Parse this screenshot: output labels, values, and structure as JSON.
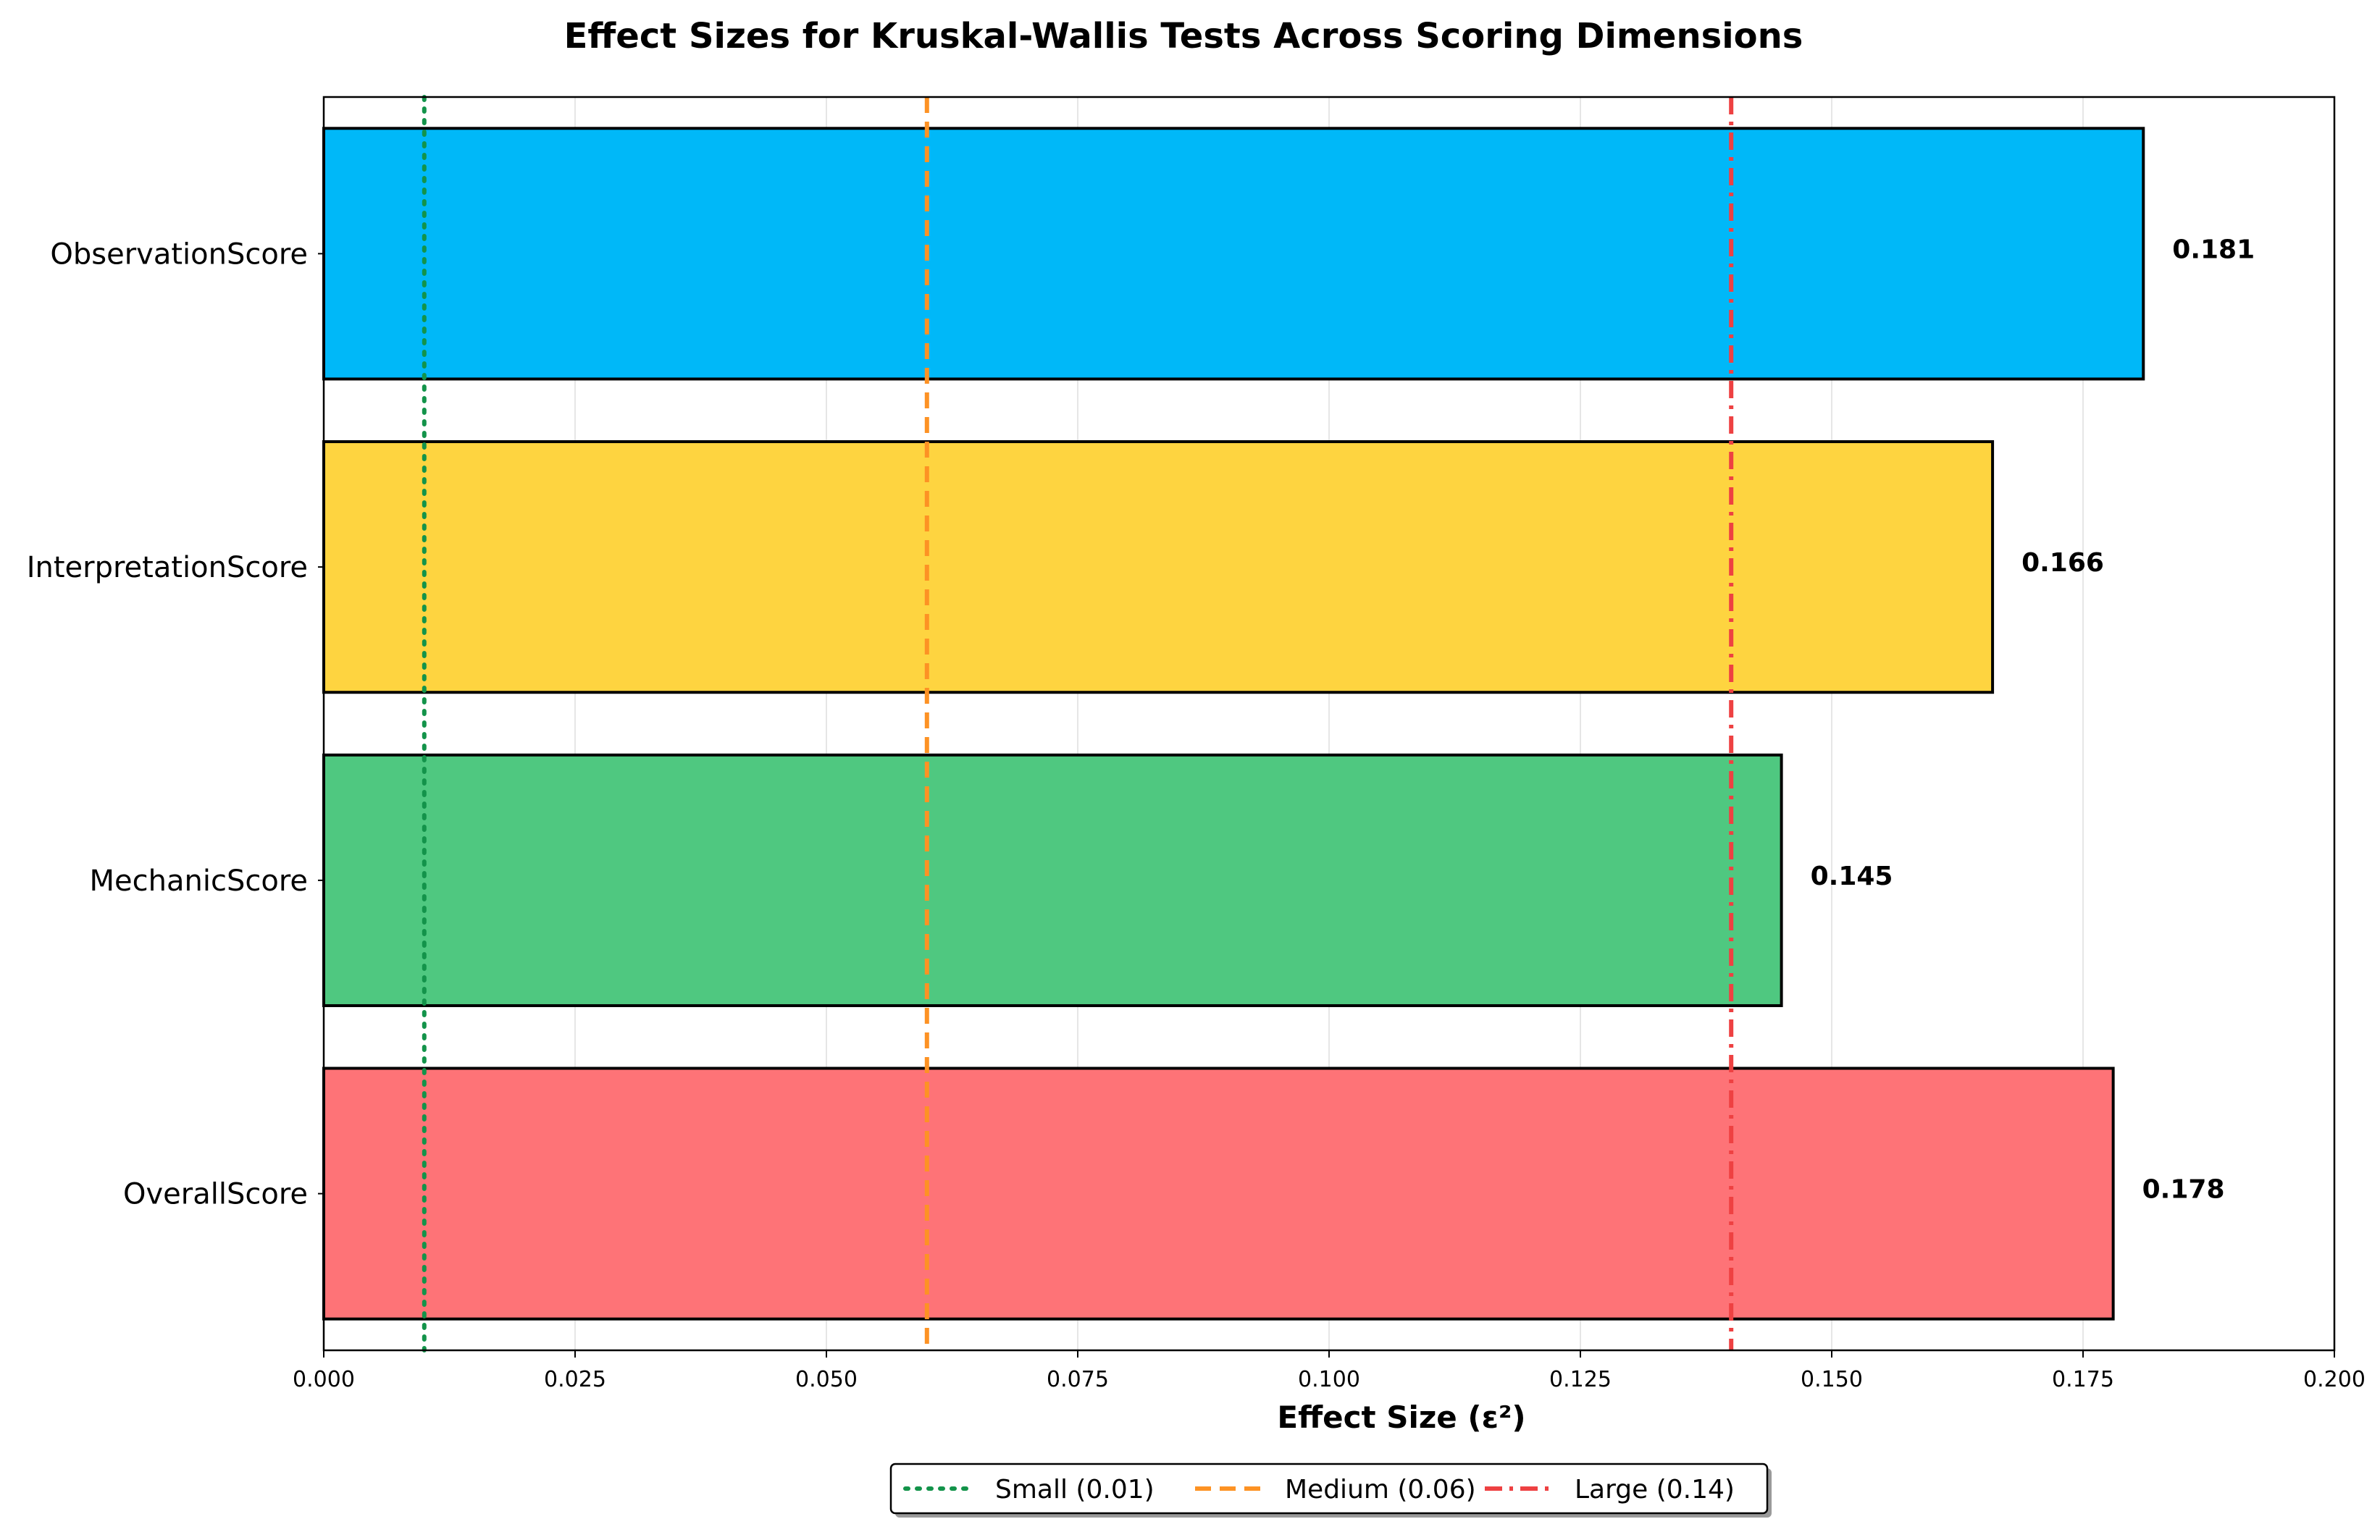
{
  "chart_data": {
    "type": "bar",
    "orientation": "horizontal",
    "title": "Effect Sizes for Kruskal-Wallis Tests Across Scoring Dimensions",
    "xlabel": "Effect Size (ε²)",
    "ylabel": "",
    "xlim": [
      0.0,
      0.2
    ],
    "xticks": [
      "0.000",
      "0.025",
      "0.050",
      "0.075",
      "0.100",
      "0.125",
      "0.150",
      "0.175",
      "0.200"
    ],
    "xtick_values": [
      0.0,
      0.025,
      0.05,
      0.075,
      0.1,
      0.125,
      0.15,
      0.175,
      0.2
    ],
    "grid": "vertical",
    "categories": [
      "ObservationScore",
      "InterpretationScore",
      "MechanicScore",
      "OverallScore"
    ],
    "values": [
      0.181,
      0.166,
      0.145,
      0.178
    ],
    "data_labels": [
      "0.181",
      "0.166",
      "0.145",
      "0.178"
    ],
    "colors": [
      "#00b8f8",
      "#fed440",
      "#4fc880",
      "#fe7377"
    ],
    "reference_lines": [
      {
        "label": "Small (0.01)",
        "value": 0.01,
        "color": "#13934a",
        "style": "dotted"
      },
      {
        "label": "Medium (0.06)",
        "value": 0.06,
        "color": "#fd9224",
        "style": "dashed"
      },
      {
        "label": "Large (0.14)",
        "value": 0.14,
        "color": "#ee4142",
        "style": "dashdot"
      }
    ],
    "legend_position": "bottom-center"
  }
}
